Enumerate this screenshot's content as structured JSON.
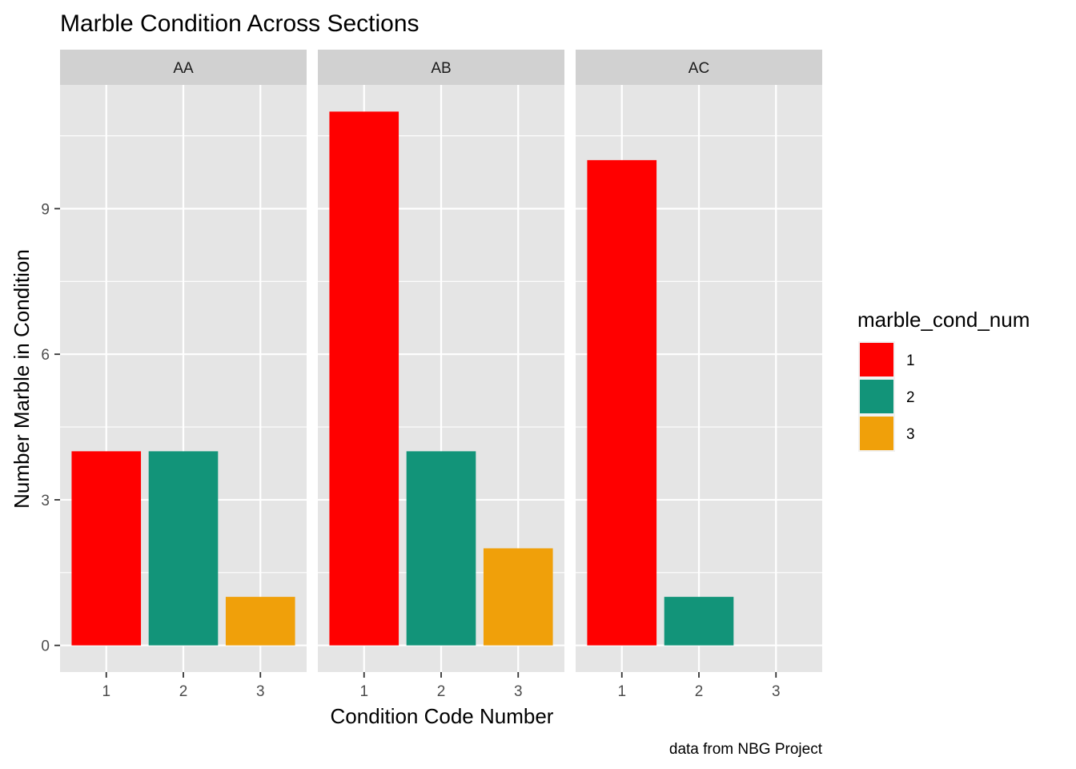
{
  "chart_data": {
    "type": "bar",
    "title": "Marble Condition Across Sections",
    "xlabel": "Condition Code Number",
    "ylabel": "Number Marble in Condition",
    "caption": "data from NBG Project",
    "facets": [
      "AA",
      "AB",
      "AC"
    ],
    "categories": [
      "1",
      "2",
      "3"
    ],
    "ylim": [
      -0.55,
      11.55
    ],
    "yticks": [
      0,
      3,
      6,
      9
    ],
    "grid": true,
    "legend": {
      "title": "marble_cond_num",
      "position": "right",
      "entries": [
        "1",
        "2",
        "3"
      ]
    },
    "colors": {
      "1": "#FF0000",
      "2": "#129479",
      "3": "#F0A00A",
      "panel_bg": "#E5E5E5",
      "strip_bg": "#D1D1D1",
      "grid": "#FFFFFF"
    },
    "series": [
      {
        "facet": "AA",
        "values": [
          4,
          4,
          1
        ]
      },
      {
        "facet": "AB",
        "values": [
          11,
          4,
          2
        ]
      },
      {
        "facet": "AC",
        "values": [
          10,
          1,
          0
        ]
      }
    ]
  }
}
